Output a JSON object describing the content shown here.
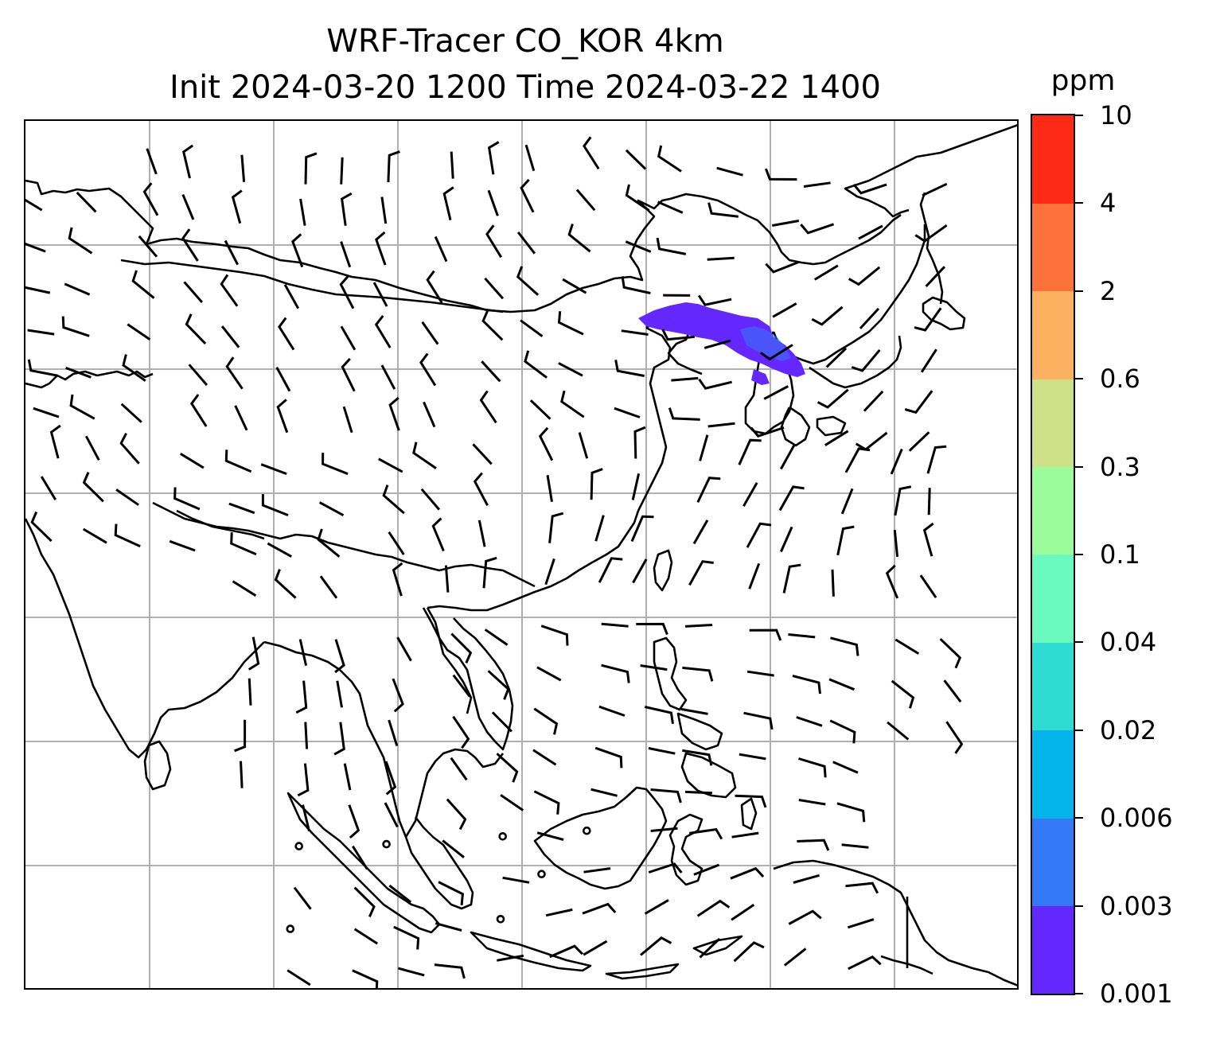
{
  "title": {
    "line1": "WRF-Tracer CO_KOR 4km",
    "line2": "Init 2024-03-20 1200 Time 2024-03-22 1400"
  },
  "colorbar": {
    "unit": "ppm",
    "levels": [
      "0.001",
      "0.003",
      "0.006",
      "0.02",
      "0.04",
      "0.1",
      "0.3",
      "0.6",
      "2",
      "4",
      "10"
    ],
    "colors": [
      "#6428ff",
      "#3378f5",
      "#04b4ea",
      "#2fdcd4",
      "#6afac0",
      "#9afc9a",
      "#cfe188",
      "#fcb160",
      "#fe713a",
      "#ff2a16"
    ]
  },
  "map": {
    "gridlines": true,
    "gridline_color": "#b0b0b0",
    "coastline_color": "#000000",
    "plume_color": "#6428ff",
    "barb_color": "#000000"
  }
}
